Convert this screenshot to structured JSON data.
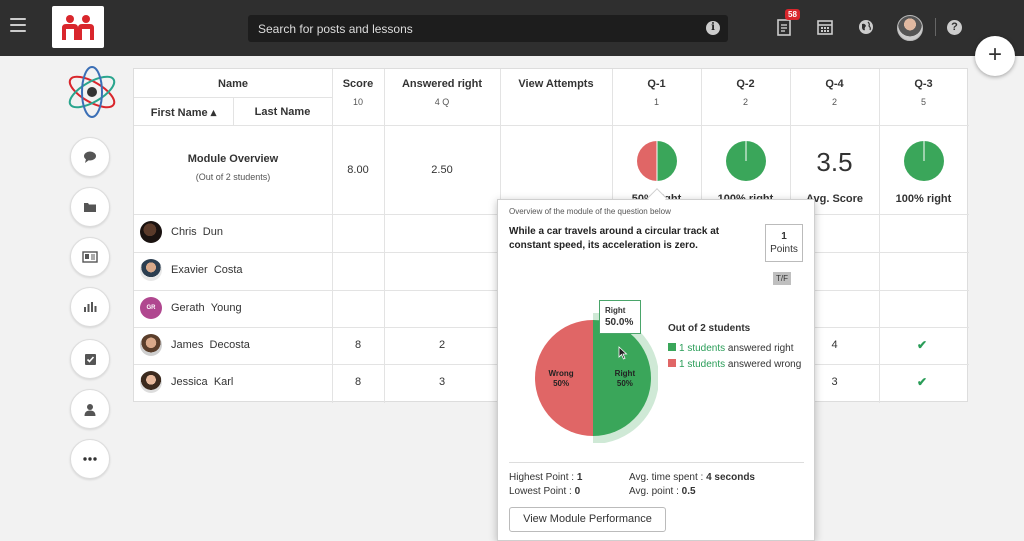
{
  "topbar": {
    "search_placeholder": "Search for posts and lessons",
    "notification_count": "58",
    "accent": "#d9262c"
  },
  "table": {
    "headers": {
      "name": "Name",
      "first_name": "First Name ▴",
      "last_name": "Last Name",
      "score": "Score",
      "score_sub": "10",
      "answered": "Answered right",
      "answered_sub": "4 Q",
      "view_attempts": "View Attempts",
      "q1": "Q-1",
      "q1_sub": "1",
      "q2": "Q-2",
      "q2_sub": "2",
      "q4": "Q-4",
      "q4_sub": "2",
      "q3": "Q-3",
      "q3_sub": "5"
    },
    "overview": {
      "title": "Module Overview",
      "subtitle": "(Out of 2 students)",
      "score": "8.00",
      "answered": "2.50",
      "q1_label": "50% right",
      "q2_label": "100% right",
      "q4_value": "3.5",
      "q4_label": "Avg. Score",
      "q3_label": "100% right",
      "q1_right_fraction": 0.5,
      "q2_right_fraction": 1.0,
      "q3_right_fraction": 1.0
    },
    "students": [
      {
        "first": "Chris",
        "last": "Dun",
        "score": "",
        "answered": "",
        "q4": "",
        "q3": ""
      },
      {
        "first": "Exavier",
        "last": "Costa",
        "score": "",
        "answered": "",
        "q4": "",
        "q3": ""
      },
      {
        "first": "Gerath",
        "last": "Young",
        "initials": "GR",
        "score": "",
        "answered": "",
        "q4": "",
        "q3": ""
      },
      {
        "first": "James",
        "last": "Decosta",
        "score": "8",
        "answered": "2",
        "q4": "4",
        "q3": "✔"
      },
      {
        "first": "Jessica",
        "last": "Karl",
        "score": "8",
        "answered": "3",
        "q4": "3",
        "q3": "✔"
      }
    ]
  },
  "popover": {
    "subtitle": "Overview of the module of the question below",
    "question": "While a car travels around a circular track at constant speed, its acceleration is zero.",
    "points_value": "1",
    "points_label": "Points",
    "type": "T/F",
    "tooltip_label": "Right",
    "tooltip_value": "50.0%",
    "pie_wrong_label": "Wrong",
    "pie_wrong_value": "50%",
    "pie_right_label": "Right",
    "pie_right_value": "50%",
    "legend_title": "Out of 2 students",
    "legend_right_link": "1 students",
    "legend_right_text": " answered right",
    "legend_wrong_link": "1 students",
    "legend_wrong_text": " answered wrong",
    "highest_label": "Highest Point : ",
    "highest_value": "1",
    "lowest_label": "Lowest Point : ",
    "lowest_value": "0",
    "avg_time_label": "Avg. time spent : ",
    "avg_time_value": "4 seconds",
    "avg_point_label": "Avg. point : ",
    "avg_point_value": "0.5",
    "button": "View Module Performance"
  },
  "chart_data": {
    "type": "pie",
    "categories": [
      "Wrong",
      "Right"
    ],
    "values": [
      50,
      50
    ],
    "colors": [
      "#e06666",
      "#3aa65a"
    ]
  },
  "colors": {
    "right": "#3aa65a",
    "wrong": "#e06666",
    "link": "#2a9d58"
  }
}
